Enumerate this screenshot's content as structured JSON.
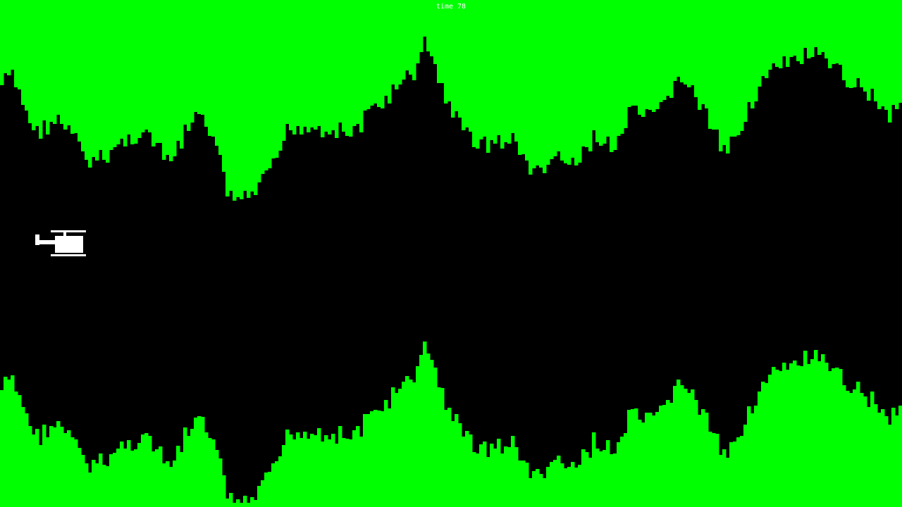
{
  "hud": {
    "time_label": "time",
    "time_value": "78"
  },
  "colors": {
    "background": "#000000",
    "cave": "#00ff00",
    "player": "#ffffff",
    "hud_text": "#ffffff"
  },
  "player": {
    "icon": "helicopter-icon"
  }
}
